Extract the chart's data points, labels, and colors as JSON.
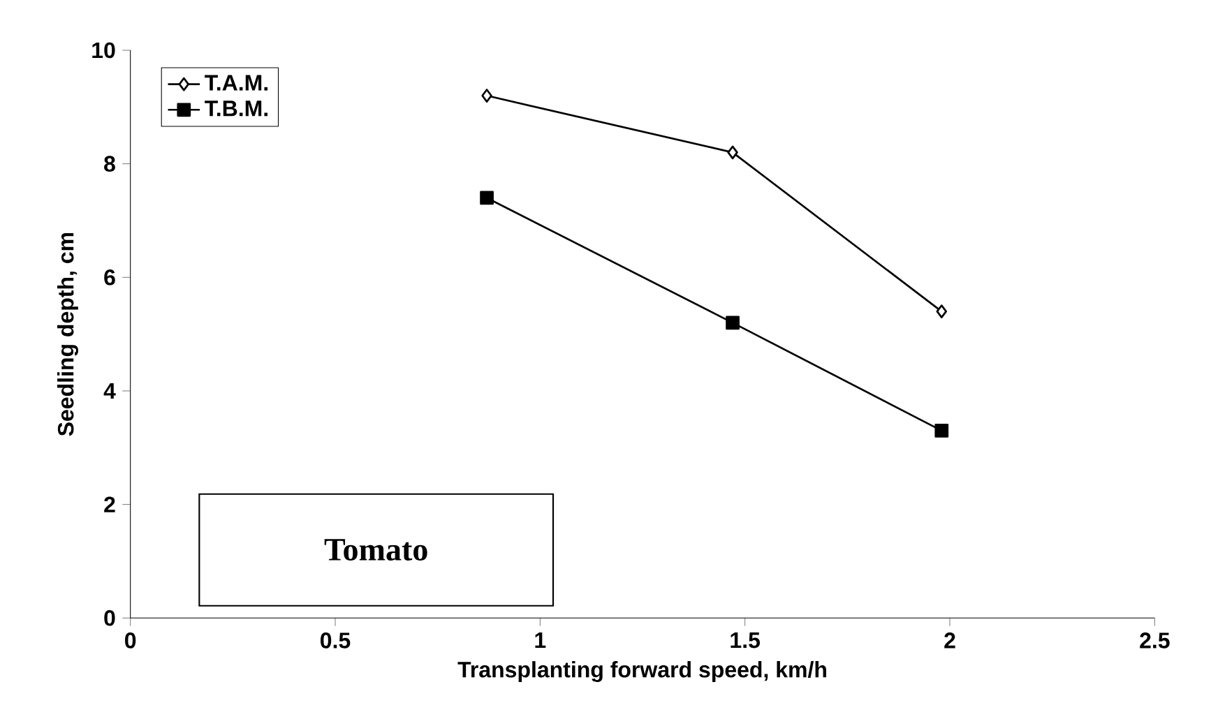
{
  "chart_data": {
    "type": "line",
    "xlabel": "Transplanting forward speed, km/h",
    "ylabel": "Seedling depth, cm",
    "x": [
      0.87,
      1.47,
      1.98
    ],
    "series": [
      {
        "name": "T.A.M.",
        "color": "#000000",
        "marker": "diamond",
        "values": [
          9.2,
          8.2,
          5.4
        ]
      },
      {
        "name": "T.B.M.",
        "color": "#000000",
        "marker": "square",
        "values": [
          7.4,
          5.2,
          3.3
        ]
      }
    ],
    "xlim": [
      0,
      2.5
    ],
    "xticks": [
      0,
      0.5,
      1,
      1.5,
      2,
      2.5
    ],
    "ylim": [
      0,
      10
    ],
    "yticks": [
      0,
      2,
      4,
      6,
      8,
      10
    ],
    "grid": false,
    "legend": "top left",
    "annotations": [
      "Tomato"
    ]
  }
}
